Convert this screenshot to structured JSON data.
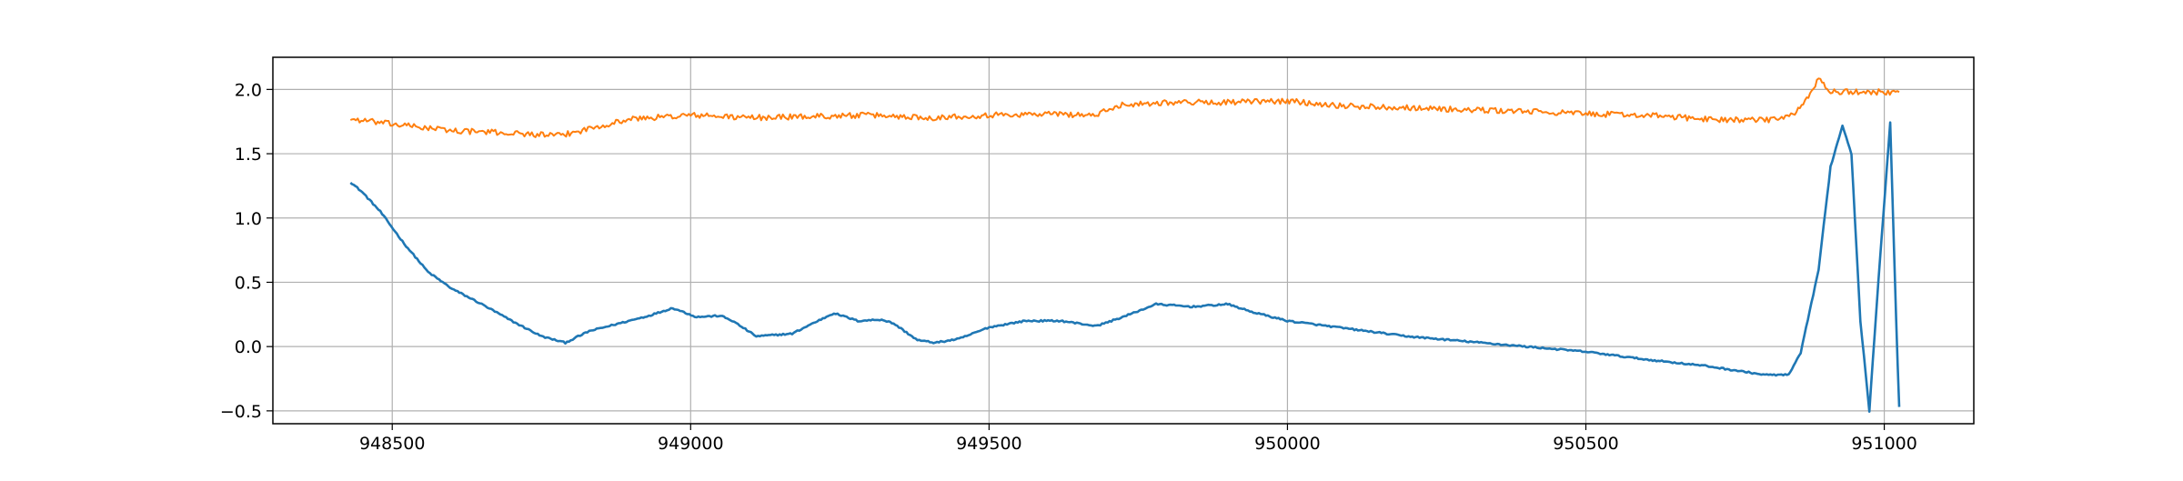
{
  "chart_data": {
    "type": "line",
    "title": "",
    "xlabel": "",
    "ylabel": "",
    "xlim": [
      948300,
      951150
    ],
    "ylim": [
      -0.6,
      2.25
    ],
    "x_ticks": [
      948500,
      949000,
      949500,
      950000,
      950500,
      951000
    ],
    "x_tick_labels": [
      "948500",
      "949000",
      "949500",
      "950000",
      "950500",
      "951000"
    ],
    "y_ticks": [
      -0.5,
      0.0,
      0.5,
      1.0,
      1.5,
      2.0
    ],
    "y_tick_labels": [
      "−0.5",
      "0.0",
      "0.5",
      "1.0",
      "1.5",
      "2.0"
    ],
    "grid": true,
    "legend": "none",
    "series": [
      {
        "color": "#1f77b4",
        "x": [
          948430,
          948450,
          948480,
          948520,
          948560,
          948600,
          948650,
          948700,
          948750,
          948790,
          948830,
          948880,
          948930,
          948970,
          949010,
          949050,
          949070,
          949110,
          949170,
          949200,
          949240,
          949280,
          949320,
          949340,
          949380,
          949410,
          949450,
          949500,
          949560,
          949620,
          949680,
          949730,
          949780,
          949840,
          949900,
          949940,
          950000,
          950100,
          950200,
          950300,
          950400,
          950500,
          950600,
          950700,
          950800,
          950840,
          950860,
          950890,
          950910,
          950930,
          950945,
          950960,
          950975,
          950990,
          951010,
          951020,
          951025
        ],
        "y": [
          1.28,
          1.2,
          1.05,
          0.8,
          0.58,
          0.45,
          0.33,
          0.2,
          0.08,
          0.03,
          0.12,
          0.18,
          0.24,
          0.3,
          0.23,
          0.24,
          0.2,
          0.08,
          0.1,
          0.17,
          0.26,
          0.2,
          0.21,
          0.18,
          0.05,
          0.03,
          0.06,
          0.15,
          0.2,
          0.2,
          0.16,
          0.24,
          0.33,
          0.31,
          0.33,
          0.27,
          0.2,
          0.14,
          0.08,
          0.04,
          0.0,
          -0.04,
          -0.1,
          -0.15,
          -0.22,
          -0.22,
          -0.05,
          0.6,
          1.4,
          1.72,
          1.5,
          0.2,
          -0.5,
          0.5,
          1.74,
          0.2,
          -0.47
        ]
      },
      {
        "color": "#ff7f0e",
        "x": [
          948430,
          948500,
          948600,
          948700,
          948780,
          948800,
          948850,
          948900,
          949000,
          949100,
          949200,
          949300,
          949400,
          949500,
          949600,
          949680,
          949720,
          949800,
          949900,
          950000,
          950100,
          950200,
          950300,
          950400,
          950500,
          950600,
          950700,
          950800,
          950850,
          950870,
          950890,
          950910,
          950950,
          951000,
          951025
        ],
        "y": [
          1.77,
          1.73,
          1.68,
          1.66,
          1.64,
          1.66,
          1.72,
          1.77,
          1.8,
          1.78,
          1.79,
          1.8,
          1.78,
          1.8,
          1.81,
          1.8,
          1.88,
          1.9,
          1.9,
          1.91,
          1.87,
          1.86,
          1.84,
          1.83,
          1.81,
          1.8,
          1.77,
          1.76,
          1.8,
          1.93,
          2.08,
          1.98,
          1.98,
          1.98,
          1.98
        ]
      }
    ]
  }
}
